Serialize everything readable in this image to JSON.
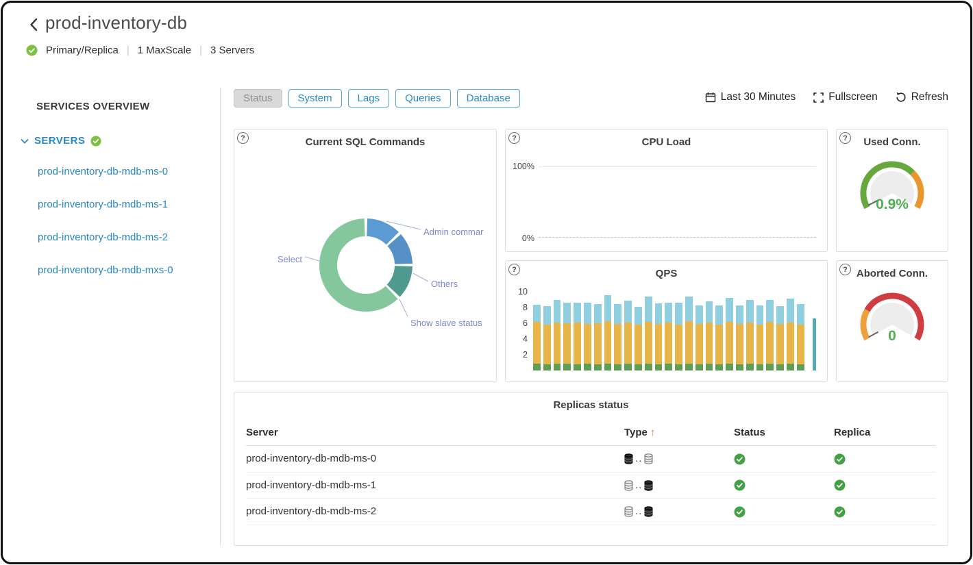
{
  "icons": {
    "help": "?",
    "sort_up": "↑"
  },
  "misc": {
    "divider": "|"
  },
  "header": {
    "title": "prod-inventory-db",
    "topology": "Primary/Replica",
    "maxscale": "1 MaxScale",
    "servers": "3 Servers"
  },
  "sidebar": {
    "heading": "SERVICES OVERVIEW",
    "group": "SERVERS",
    "items": [
      "prod-inventory-db-mdb-ms-0",
      "prod-inventory-db-mdb-ms-1",
      "prod-inventory-db-mdb-ms-2",
      "prod-inventory-db-mdb-mxs-0"
    ]
  },
  "toolbar": {
    "tabs": [
      {
        "label": "Status",
        "active": true
      },
      {
        "label": "System",
        "active": false
      },
      {
        "label": "Lags",
        "active": false
      },
      {
        "label": "Queries",
        "active": false
      },
      {
        "label": "Database",
        "active": false
      }
    ],
    "time_range": "Last 30 Minutes",
    "fullscreen": "Fullscreen",
    "refresh": "Refresh"
  },
  "chart_data": [
    {
      "id": "sql_commands",
      "type": "pie",
      "title": "Current SQL Commands",
      "label_color": "#7e88cc",
      "segments": [
        {
          "label": "Admin commar",
          "pct": 13,
          "color": "#5b9bd3"
        },
        {
          "label": "Others",
          "pct": 12,
          "color": "#5590c7"
        },
        {
          "label": "Show slave status",
          "pct": 12.5,
          "color": "#4f998e"
        },
        {
          "label": "Select",
          "pct": 62.5,
          "color": "#85c79c"
        }
      ]
    },
    {
      "id": "cpu_load",
      "type": "line",
      "title": "CPU Load",
      "y_labels": [
        "100%",
        "0%"
      ],
      "series": [
        {
          "name": "CPU",
          "flat_value_pct": 0
        }
      ]
    },
    {
      "id": "qps",
      "type": "bar",
      "title": "QPS",
      "y_ticks": [
        2,
        4,
        6,
        8,
        10
      ],
      "ylim": [
        0,
        10
      ],
      "colors": [
        "#5f9e55",
        "#e7b54a",
        "#8fcfe0"
      ],
      "bars": [
        [
          0.9,
          5.3,
          2.2
        ],
        [
          0.8,
          5.0,
          2.4
        ],
        [
          0.9,
          5.2,
          2.9
        ],
        [
          0.9,
          5.1,
          2.6
        ],
        [
          0.8,
          5.3,
          2.5
        ],
        [
          0.9,
          5.0,
          2.7
        ],
        [
          0.8,
          5.2,
          2.4
        ],
        [
          0.9,
          5.4,
          3.3
        ],
        [
          0.8,
          5.1,
          2.5
        ],
        [
          0.9,
          5.2,
          2.8
        ],
        [
          0.8,
          5.0,
          2.3
        ],
        [
          0.9,
          5.3,
          3.2
        ],
        [
          0.8,
          5.1,
          2.6
        ],
        [
          0.9,
          5.2,
          2.5
        ],
        [
          0.8,
          5.0,
          2.8
        ],
        [
          0.9,
          5.4,
          3.1
        ],
        [
          0.8,
          5.1,
          2.4
        ],
        [
          0.9,
          5.2,
          2.7
        ],
        [
          0.8,
          5.0,
          2.5
        ],
        [
          0.9,
          5.3,
          3.0
        ],
        [
          0.8,
          5.1,
          2.4
        ],
        [
          0.9,
          5.2,
          2.9
        ],
        [
          0.8,
          5.0,
          2.5
        ],
        [
          0.9,
          5.3,
          2.8
        ],
        [
          0.8,
          5.1,
          2.3
        ],
        [
          0.9,
          5.2,
          3.0
        ],
        [
          0.8,
          5.0,
          2.6
        ]
      ],
      "edge_bar": {
        "values": [
          0,
          0,
          6.6
        ],
        "color": "#55a9b4"
      }
    },
    {
      "id": "used_conn",
      "type": "gauge",
      "title": "Used Conn.",
      "value": "0.9%",
      "value_color": "#4caf50",
      "needle_angle": 207,
      "needle_color": "#4e6e4e",
      "segments": [
        {
          "color": "#66a83e",
          "from": 210,
          "to": 45
        },
        {
          "color": "#e8962e",
          "from": 45,
          "to": -30
        }
      ]
    },
    {
      "id": "aborted_conn",
      "type": "gauge",
      "title": "Aborted Conn.",
      "value": "0",
      "value_color": "#4caf50",
      "needle_angle": 208,
      "needle_color": "#666666",
      "segments": [
        {
          "color": "#eda13d",
          "from": 210,
          "to": 150
        },
        {
          "color": "#cf3d42",
          "from": 150,
          "to": -30
        }
      ]
    }
  ],
  "replicas": {
    "title": "Replicas status",
    "headers": [
      "Server",
      "Type",
      "Status",
      "Replica"
    ],
    "sorted_by": "Type",
    "type_separator": "..",
    "rows": [
      {
        "server": "prod-inventory-db-mdb-ms-0",
        "type": [
          "solid",
          "outline"
        ],
        "status": "ok",
        "replica": "ok"
      },
      {
        "server": "prod-inventory-db-mdb-ms-1",
        "type": [
          "outline",
          "solid"
        ],
        "status": "ok",
        "replica": "ok"
      },
      {
        "server": "prod-inventory-db-mdb-ms-2",
        "type": [
          "outline",
          "solid"
        ],
        "status": "ok",
        "replica": "ok"
      }
    ]
  }
}
